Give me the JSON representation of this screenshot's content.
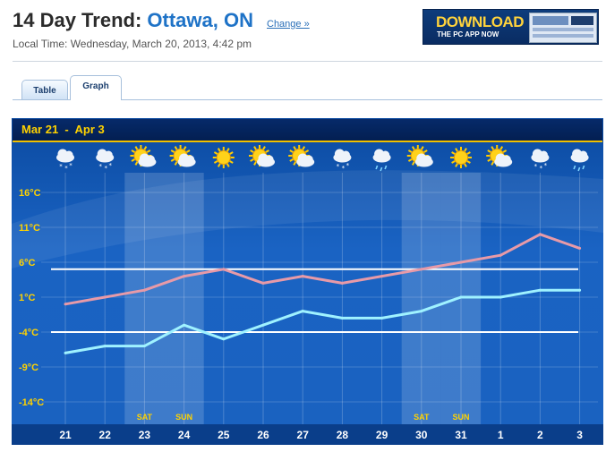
{
  "header": {
    "title_prefix": "14 Day Trend: ",
    "city": "Ottawa, ON",
    "change_link": "Change »",
    "local_time": "Local Time: Wednesday, March 20, 2013, 4:42 pm"
  },
  "ad": {
    "headline": "DOWNLOAD",
    "subline": "THE PC APP NOW"
  },
  "tabs": [
    {
      "label": "Table",
      "active": false
    },
    {
      "label": "Graph",
      "active": true
    }
  ],
  "chart_data": {
    "type": "line",
    "title": "Mar 21  -  Apr 3",
    "categories": [
      "21",
      "22",
      "23",
      "24",
      "25",
      "26",
      "27",
      "28",
      "29",
      "30",
      "31",
      "1",
      "2",
      "3"
    ],
    "weekend_labels": {
      "23": "SAT",
      "24": "SUN",
      "30": "SAT",
      "31": "SUN"
    },
    "icons": [
      "snow",
      "snow",
      "sun-cloud",
      "sun-cloud",
      "sun",
      "sun-cloud",
      "sun-cloud",
      "snow-shower",
      "rain-shower",
      "sun-cloud",
      "sun",
      "sun-cloud",
      "snow-shower",
      "rain-shower"
    ],
    "y_ticks": [
      "16°C",
      "11°C",
      "6°C",
      "1°C",
      "-4°C",
      "-9°C",
      "-14°C"
    ],
    "ylim": [
      -14,
      16
    ],
    "reference_lines": [
      5,
      -4
    ],
    "series": [
      {
        "values": [
          0,
          1,
          2,
          4,
          5,
          3,
          4,
          3,
          4,
          5,
          6,
          7,
          10,
          8
        ],
        "color": "#e79aa8"
      },
      {
        "values": [
          -7,
          -6,
          -6,
          -3,
          -5,
          -3,
          -1,
          -2,
          -2,
          -1,
          1,
          1,
          2,
          2
        ],
        "color": "#9ff2ff"
      }
    ],
    "grid": true
  }
}
